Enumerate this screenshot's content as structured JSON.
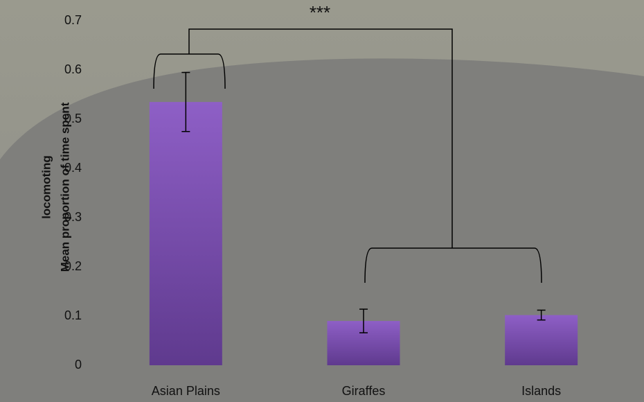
{
  "chart_data": {
    "type": "bar",
    "ylabel": [
      "Mean proportion of time spent",
      "locomoting"
    ],
    "annotation": "***",
    "categories": [
      "Asian Plains",
      "Giraffes",
      "Islands"
    ],
    "values": [
      0.535,
      0.09,
      0.102
    ],
    "errors": [
      0.06,
      0.024,
      0.01
    ],
    "color": "#7b4fb0",
    "ylim": [
      0,
      0.7
    ],
    "yticks": [
      0,
      0.1,
      0.2,
      0.3,
      0.4,
      0.5,
      0.6,
      0.7
    ],
    "grid": false
  }
}
